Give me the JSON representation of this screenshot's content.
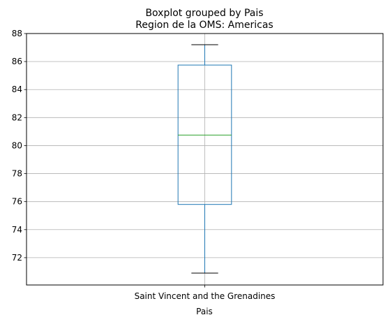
{
  "chart_data": {
    "type": "box",
    "suptitle": "Boxplot grouped by Pais",
    "title": "Region de la OMS: Americas",
    "xlabel": "Pais",
    "ylabel": "",
    "categories": [
      "Saint Vincent and the Grenadines"
    ],
    "boxes": [
      {
        "category": "Saint Vincent and the Grenadines",
        "whisker_low": 70.9,
        "q1": 75.8,
        "median": 80.75,
        "q3": 85.75,
        "whisker_high": 87.2
      }
    ],
    "yticks": [
      72,
      74,
      76,
      78,
      80,
      82,
      84,
      86,
      88
    ],
    "ylim": [
      70.05,
      88.0
    ],
    "grid": true,
    "colors": {
      "box": "#1f77b4",
      "median": "#2ca02c",
      "whisker": "#1f77b4",
      "cap": "#000000",
      "grid": "#b0b0b0",
      "axis": "#000000"
    }
  }
}
